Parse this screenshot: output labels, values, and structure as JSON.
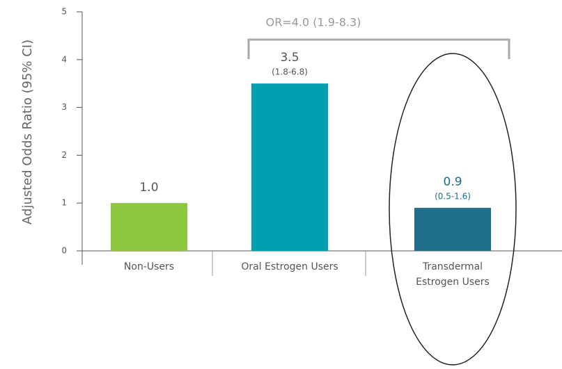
{
  "chart_data": {
    "type": "bar",
    "y_label": "Adjusted Odds Ratio (95% CI)",
    "annotation": "OR=4.0 (1.9-8.3)",
    "categories": [
      "Non-Users",
      "Oral Estrogen Users",
      [
        "Transdermal",
        "Estrogen Users"
      ]
    ],
    "values": [
      1.0,
      3.5,
      0.9
    ],
    "value_labels": [
      "1.0",
      "3.5",
      "0.9"
    ],
    "ci_labels": [
      null,
      "(1.8-6.8)",
      "(0.5-1.6)"
    ],
    "colors": [
      "#8dc63f",
      "#00a0b0",
      "#1f6e8c"
    ],
    "label_colors": [
      "#555555",
      "#555555",
      "#1f6e8c"
    ],
    "ylim": [
      0,
      5
    ],
    "yticks": [
      0,
      1,
      2,
      3,
      4,
      5
    ],
    "grid": false
  }
}
